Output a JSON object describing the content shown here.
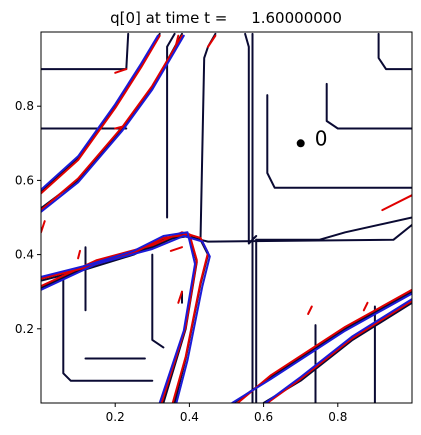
{
  "chart_data": {
    "type": "contour",
    "title": "q[0] at time t =     1.60000000",
    "xlabel": "",
    "ylabel": "",
    "xlim": [
      0.0,
      1.0
    ],
    "ylim": [
      0.0,
      1.0
    ],
    "xticks": [
      0.2,
      0.4,
      0.6,
      0.8
    ],
    "xtick_labels": [
      "0.2",
      "0.4",
      "0.6",
      "0.8"
    ],
    "yticks": [
      0.2,
      0.4,
      0.6,
      0.8
    ],
    "ytick_labels": [
      "0.2",
      "0.4",
      "0.6",
      "0.8"
    ],
    "grid": false,
    "probe": {
      "x": 0.7,
      "y": 0.7,
      "label": "0"
    },
    "contour_sets": [
      {
        "color": "#0a0a33",
        "lines": [
          [
            [
              0.0,
              0.9
            ],
            [
              0.23,
              0.9
            ],
            [
              0.235,
              0.995
            ]
          ],
          [
            [
              0.0,
              0.74
            ],
            [
              0.23,
              0.74
            ]
          ],
          [
            [
              0.36,
              0.995
            ],
            [
              0.34,
              0.96
            ],
            [
              0.34,
              0.5
            ]
          ],
          [
            [
              0.43,
              0.44
            ],
            [
              0.44,
              0.93
            ],
            [
              0.45,
              0.96
            ],
            [
              0.47,
              0.995
            ]
          ],
          [
            [
              0.57,
              0.995
            ],
            [
              0.57,
              0.4
            ],
            [
              0.57,
              0.0
            ]
          ],
          [
            [
              0.55,
              0.995
            ],
            [
              0.56,
              0.96
            ],
            [
              0.56,
              0.43
            ],
            [
              0.58,
              0.45
            ]
          ],
          [
            [
              0.58,
              0.44
            ],
            [
              0.58,
              0.0
            ]
          ],
          [
            [
              0.12,
              0.42
            ],
            [
              0.12,
              0.25
            ]
          ],
          [
            [
              0.06,
              0.34
            ],
            [
              0.06,
              0.08
            ],
            [
              0.08,
              0.06
            ],
            [
              0.3,
              0.06
            ]
          ],
          [
            [
              0.12,
              0.12
            ],
            [
              0.28,
              0.12
            ]
          ],
          [
            [
              0.3,
              0.4
            ],
            [
              0.3,
              0.17
            ],
            [
              0.33,
              0.15
            ]
          ],
          [
            [
              0.38,
              0.3
            ],
            [
              0.38,
              0.27
            ]
          ],
          [
            [
              0.43,
              0.44
            ],
            [
              0.45,
              0.435
            ],
            [
              0.95,
              0.44
            ],
            [
              1.0,
              0.48
            ]
          ],
          [
            [
              0.58,
              0.44
            ],
            [
              0.75,
              0.44
            ],
            [
              0.82,
              0.46
            ],
            [
              1.0,
              0.5
            ]
          ],
          [
            [
              0.77,
              0.86
            ],
            [
              0.77,
              0.76
            ],
            [
              0.8,
              0.74
            ],
            [
              1.0,
              0.74
            ]
          ],
          [
            [
              0.61,
              0.83
            ],
            [
              0.61,
              0.62
            ],
            [
              0.63,
              0.58
            ],
            [
              1.0,
              0.58
            ]
          ],
          [
            [
              0.91,
              0.995
            ],
            [
              0.91,
              0.93
            ],
            [
              0.93,
              0.9
            ],
            [
              1.0,
              0.9
            ]
          ],
          [
            [
              0.74,
              0.21
            ],
            [
              0.74,
              0.0
            ]
          ],
          [
            [
              0.9,
              0.26
            ],
            [
              0.9,
              0.0
            ]
          ],
          [
            [
              0.52,
              0.0
            ],
            [
              0.62,
              0.07
            ],
            [
              0.82,
              0.2
            ],
            [
              1.0,
              0.3
            ]
          ],
          [
            [
              0.6,
              0.0
            ],
            [
              0.7,
              0.06
            ],
            [
              0.84,
              0.17
            ],
            [
              1.0,
              0.27
            ]
          ],
          [
            [
              0.0,
              0.525
            ],
            [
              0.1,
              0.6
            ],
            [
              0.22,
              0.74
            ],
            [
              0.3,
              0.85
            ],
            [
              0.38,
              0.995
            ]
          ],
          [
            [
              0.0,
              0.57
            ],
            [
              0.1,
              0.66
            ],
            [
              0.2,
              0.8
            ],
            [
              0.27,
              0.91
            ],
            [
              0.32,
              0.995
            ]
          ],
          [
            [
              0.0,
              0.31
            ],
            [
              0.15,
              0.38
            ],
            [
              0.3,
              0.42
            ],
            [
              0.38,
              0.455
            ],
            [
              0.43,
              0.44
            ],
            [
              0.45,
              0.4
            ],
            [
              0.43,
              0.32
            ],
            [
              0.39,
              0.12
            ],
            [
              0.36,
              0.0
            ]
          ],
          [
            [
              0.0,
              0.33
            ],
            [
              0.12,
              0.36
            ],
            [
              0.25,
              0.4
            ],
            [
              0.33,
              0.44
            ],
            [
              0.4,
              0.45
            ],
            [
              0.42,
              0.38
            ],
            [
              0.39,
              0.2
            ],
            [
              0.33,
              0.0
            ]
          ]
        ]
      },
      {
        "color": "#e00000",
        "lines": [
          [
            [
              0.0,
              0.52
            ],
            [
              0.1,
              0.605
            ],
            [
              0.22,
              0.745
            ],
            [
              0.3,
              0.855
            ],
            [
              0.38,
              0.99
            ]
          ],
          [
            [
              0.0,
              0.565
            ],
            [
              0.1,
              0.655
            ],
            [
              0.2,
              0.795
            ],
            [
              0.27,
              0.905
            ],
            [
              0.32,
              0.99
            ]
          ],
          [
            [
              0.0,
              0.315
            ],
            [
              0.15,
              0.385
            ],
            [
              0.3,
              0.425
            ],
            [
              0.38,
              0.46
            ],
            [
              0.43,
              0.445
            ],
            [
              0.45,
              0.405
            ],
            [
              0.43,
              0.325
            ],
            [
              0.39,
              0.125
            ],
            [
              0.355,
              0.0
            ]
          ],
          [
            [
              0.0,
              0.335
            ],
            [
              0.12,
              0.365
            ],
            [
              0.25,
              0.405
            ],
            [
              0.33,
              0.445
            ],
            [
              0.4,
              0.455
            ],
            [
              0.42,
              0.385
            ],
            [
              0.39,
              0.205
            ],
            [
              0.325,
              0.0
            ]
          ],
          [
            [
              0.53,
              0.0
            ],
            [
              0.62,
              0.075
            ],
            [
              0.82,
              0.205
            ],
            [
              1.0,
              0.305
            ]
          ],
          [
            [
              0.61,
              0.0
            ],
            [
              0.7,
              0.065
            ],
            [
              0.84,
              0.175
            ],
            [
              1.0,
              0.275
            ]
          ],
          [
            [
              0.0,
              0.46
            ],
            [
              0.01,
              0.49
            ]
          ],
          [
            [
              0.1,
              0.39
            ],
            [
              0.105,
              0.41
            ]
          ],
          [
            [
              0.36,
              0.95
            ],
            [
              0.37,
              0.99
            ]
          ],
          [
            [
              0.45,
              0.96
            ],
            [
              0.47,
              0.99
            ]
          ],
          [
            [
              0.92,
              0.52
            ],
            [
              1.0,
              0.56
            ]
          ],
          [
            [
              0.35,
              0.41
            ],
            [
              0.38,
              0.42
            ]
          ],
          [
            [
              0.37,
              0.27
            ],
            [
              0.38,
              0.3
            ]
          ],
          [
            [
              0.72,
              0.24
            ],
            [
              0.73,
              0.26
            ]
          ],
          [
            [
              0.87,
              0.25
            ],
            [
              0.88,
              0.27
            ]
          ],
          [
            [
              0.2,
              0.89
            ],
            [
              0.23,
              0.9
            ]
          ],
          [
            [
              0.2,
              0.74
            ],
            [
              0.22,
              0.745
            ]
          ]
        ]
      },
      {
        "color": "#1b1bd8",
        "lines": [
          [
            [
              0.0,
              0.515
            ],
            [
              0.1,
              0.595
            ],
            [
              0.22,
              0.735
            ],
            [
              0.3,
              0.845
            ],
            [
              0.385,
              0.99
            ]
          ],
          [
            [
              0.0,
              0.575
            ],
            [
              0.1,
              0.665
            ],
            [
              0.2,
              0.805
            ],
            [
              0.27,
              0.915
            ],
            [
              0.315,
              0.99
            ]
          ],
          [
            [
              0.0,
              0.305
            ],
            [
              0.15,
              0.375
            ],
            [
              0.3,
              0.415
            ],
            [
              0.385,
              0.45
            ],
            [
              0.435,
              0.435
            ],
            [
              0.455,
              0.395
            ],
            [
              0.435,
              0.315
            ],
            [
              0.395,
              0.115
            ],
            [
              0.365,
              0.0
            ]
          ],
          [
            [
              0.0,
              0.34
            ],
            [
              0.12,
              0.37
            ],
            [
              0.25,
              0.41
            ],
            [
              0.33,
              0.45
            ],
            [
              0.395,
              0.46
            ],
            [
              0.415,
              0.375
            ],
            [
              0.385,
              0.195
            ],
            [
              0.32,
              0.0
            ]
          ],
          [
            [
              0.515,
              0.0
            ],
            [
              0.62,
              0.065
            ],
            [
              0.82,
              0.195
            ],
            [
              1.0,
              0.295
            ]
          ],
          [
            [
              0.605,
              0.0
            ],
            [
              0.7,
              0.07
            ],
            [
              0.84,
              0.18
            ],
            [
              1.0,
              0.28
            ]
          ]
        ]
      }
    ]
  }
}
